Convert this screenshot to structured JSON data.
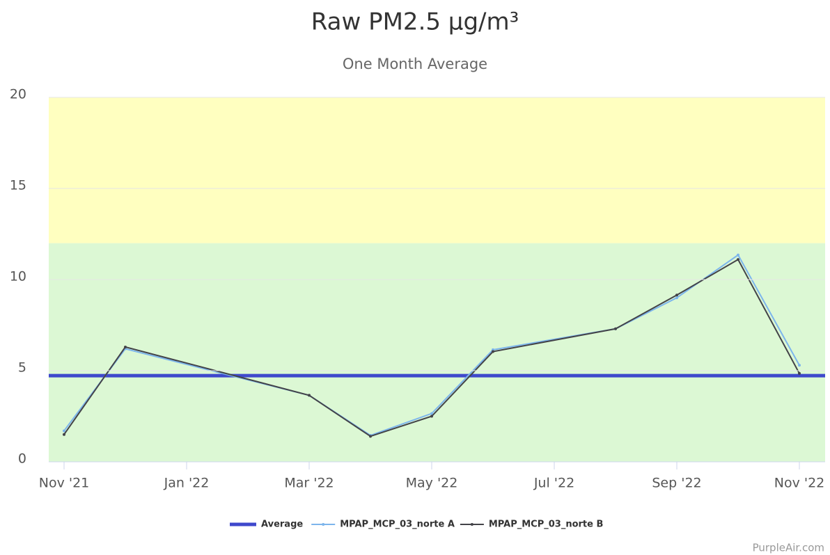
{
  "chart_data": {
    "type": "line",
    "title": "Raw PM2.5 µg/m³",
    "subtitle": "One Month Average",
    "credit": "PurpleAir.com",
    "x": [
      "2021-11",
      "2021-12",
      "2022-03",
      "2022-04",
      "2022-05",
      "2022-06",
      "2022-08",
      "2022-09",
      "2022-10",
      "2022-11"
    ],
    "series": [
      {
        "name": "MPAP_MCP_03_norte A",
        "color": "#7cb5ec",
        "values": [
          1.7,
          6.2,
          3.65,
          1.45,
          2.65,
          6.15,
          7.3,
          9.0,
          11.35,
          5.3
        ]
      },
      {
        "name": "MPAP_MCP_03_norte B",
        "color": "#434348",
        "values": [
          1.5,
          6.3,
          3.65,
          1.4,
          2.5,
          6.05,
          7.3,
          9.15,
          11.1,
          4.85
        ]
      }
    ],
    "average": {
      "name": "Average",
      "color": "#3f48cc",
      "value": 4.73
    },
    "bands": [
      {
        "from": 0,
        "to": 12,
        "color": "#dcf8d4"
      },
      {
        "from": 12,
        "to": 20,
        "color": "#ffffc0"
      }
    ],
    "ylim": [
      0,
      20
    ],
    "yticks": [
      0,
      5,
      10,
      15,
      20
    ],
    "xticks": [
      {
        "value": "2021-11",
        "label": "Nov '21"
      },
      {
        "value": "2022-01",
        "label": "Jan '22"
      },
      {
        "value": "2022-03",
        "label": "Mar '22"
      },
      {
        "value": "2022-05",
        "label": "May '22"
      },
      {
        "value": "2022-07",
        "label": "Jul '22"
      },
      {
        "value": "2022-09",
        "label": "Sep '22"
      },
      {
        "value": "2022-11",
        "label": "Nov '22"
      }
    ],
    "grid": true
  }
}
